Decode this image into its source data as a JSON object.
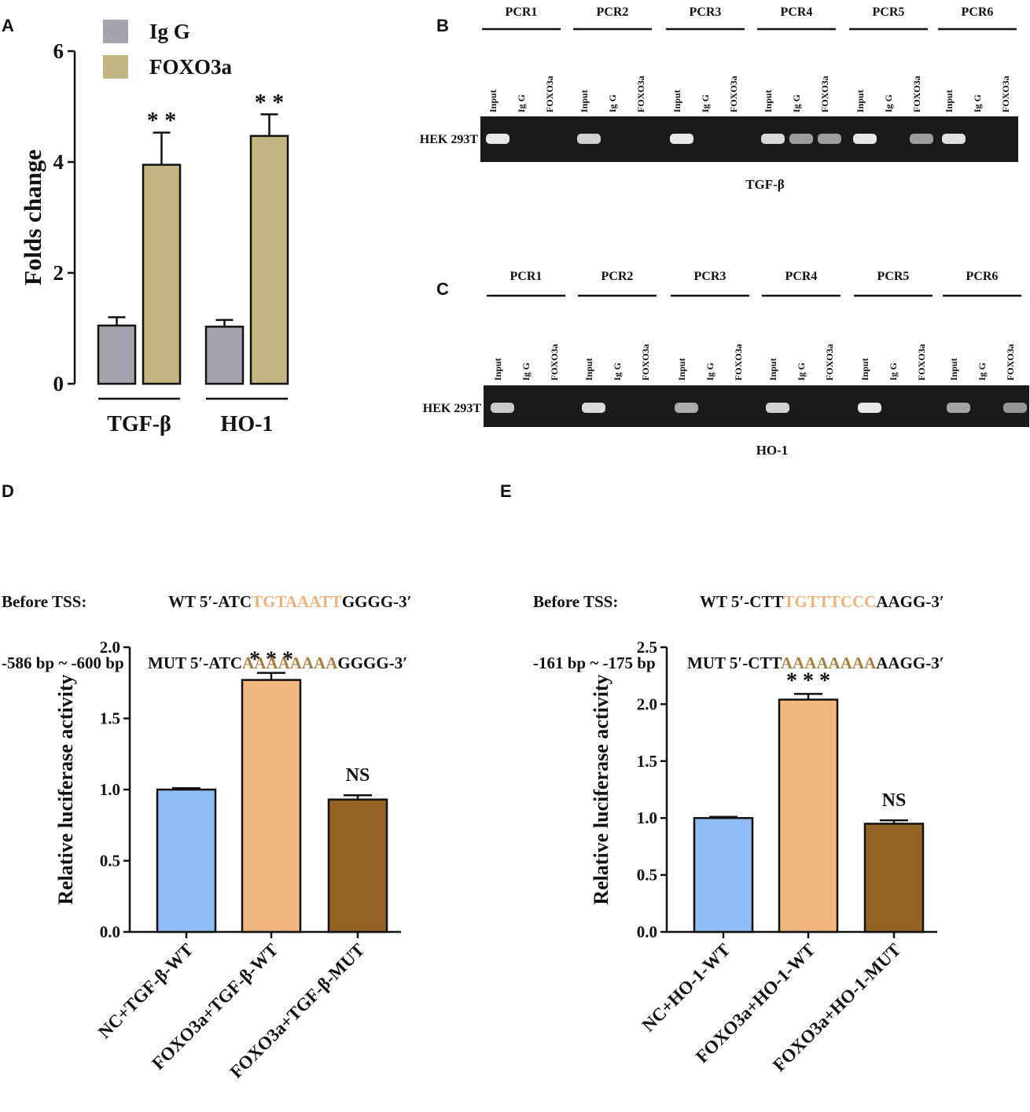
{
  "colors": {
    "igg": "#a4a4ae",
    "foxo3a": "#c3b682",
    "nc": "#8fbdf5",
    "foxo_wt": "#f2b77f",
    "foxo_mut": "#946222",
    "wt_site": "#f0b078",
    "mut_site": "#a97f3e"
  },
  "panels": {
    "A": "A",
    "B": "B",
    "C": "C",
    "D": "D",
    "E": "E"
  },
  "chart_data": [
    {
      "id": "A",
      "type": "bar",
      "ylabel": "Folds change",
      "ylim": [
        0,
        6
      ],
      "yticks": [
        "0",
        "2",
        "4",
        "6"
      ],
      "categories": [
        "TGF-β",
        "HO-1"
      ],
      "series": [
        {
          "name": "Ig G",
          "values": [
            1.05,
            1.03
          ],
          "errors": [
            0.15,
            0.12
          ]
        },
        {
          "name": "FOXO3a",
          "values": [
            3.95,
            4.47
          ],
          "errors": [
            0.58,
            0.39
          ]
        }
      ],
      "annotations": [
        "* *",
        "* *"
      ]
    },
    {
      "id": "D",
      "type": "bar",
      "ylabel": "Relative luciferase activity",
      "ylim": [
        0,
        2.0
      ],
      "yticks": [
        "0.0",
        "0.5",
        "1.0",
        "1.5",
        "2.0"
      ],
      "categories": [
        "NC+TGF-β-WT",
        "FOXO3a+TGF-β-WT",
        "FOXO3a+TGF-β-MUT"
      ],
      "values": [
        1.0,
        1.77,
        0.93
      ],
      "errors": [
        0.01,
        0.05,
        0.03
      ],
      "annotations": [
        "",
        "* * *",
        "NS"
      ]
    },
    {
      "id": "E",
      "type": "bar",
      "ylabel": "Relative luciferase activity",
      "ylim": [
        0,
        2.5
      ],
      "yticks": [
        "0.0",
        "0.5",
        "1.0",
        "1.5",
        "2.0",
        "2.5"
      ],
      "categories": [
        "NC+HO-1-WT",
        "FOXO3a+HO-1-WT",
        "FOXO3a+HO-1-MUT"
      ],
      "values": [
        1.0,
        2.04,
        0.95
      ],
      "errors": [
        0.01,
        0.05,
        0.03
      ],
      "annotations": [
        "",
        "* * *",
        "NS"
      ]
    }
  ],
  "gels": {
    "B": {
      "pcr_labels": [
        "PCR1",
        "PCR2",
        "PCR3",
        "PCR4",
        "PCR5",
        "PCR6"
      ],
      "lane_labels": [
        "Input",
        "Ig G",
        "FOXO3a"
      ],
      "cell_line": "HEK 293T",
      "caption": "TGF-β",
      "band_intensity": [
        [
          1.0,
          0.0,
          0.0
        ],
        [
          0.85,
          0.0,
          0.0
        ],
        [
          1.0,
          0.0,
          0.0
        ],
        [
          0.9,
          0.5,
          0.5
        ],
        [
          1.0,
          0.0,
          0.5
        ],
        [
          0.95,
          0.0,
          0.0
        ]
      ]
    },
    "C": {
      "pcr_labels": [
        "PCR1",
        "PCR2",
        "PCR3",
        "PCR4",
        "PCR5",
        "PCR6"
      ],
      "lane_labels": [
        "Input",
        "Ig G",
        "FOXO3a"
      ],
      "cell_line": "HEK 293T",
      "caption": "HO-1",
      "band_intensity": [
        [
          0.8,
          0.0,
          0.0
        ],
        [
          0.9,
          0.0,
          0.0
        ],
        [
          0.6,
          0.0,
          0.0
        ],
        [
          0.85,
          0.0,
          0.0
        ],
        [
          1.0,
          0.0,
          0.0
        ],
        [
          0.55,
          0.0,
          0.45
        ]
      ]
    }
  },
  "sequences": {
    "D": {
      "line1_label": "Before TSS:",
      "line2_label": "-586 bp ~ -600 bp",
      "wt_prefix": "WT 5′-ATC",
      "wt_site": "TGTAAATT",
      "wt_suffix": "GGGG-3′",
      "mut_prefix": "MUT 5′-ATC",
      "mut_site": "AAAAAAAA",
      "mut_suffix": "GGGG-3′"
    },
    "E": {
      "line1_label": "Before TSS:",
      "line2_label": "-161 bp ~ -175 bp",
      "wt_prefix": "WT 5′-CTT",
      "wt_site": "TGTTTCCC",
      "wt_suffix": "AAGG-3′",
      "mut_prefix": "MUT 5′-CTT",
      "mut_site": "AAAAAAAA",
      "mut_suffix": "AAGG-3′"
    }
  }
}
